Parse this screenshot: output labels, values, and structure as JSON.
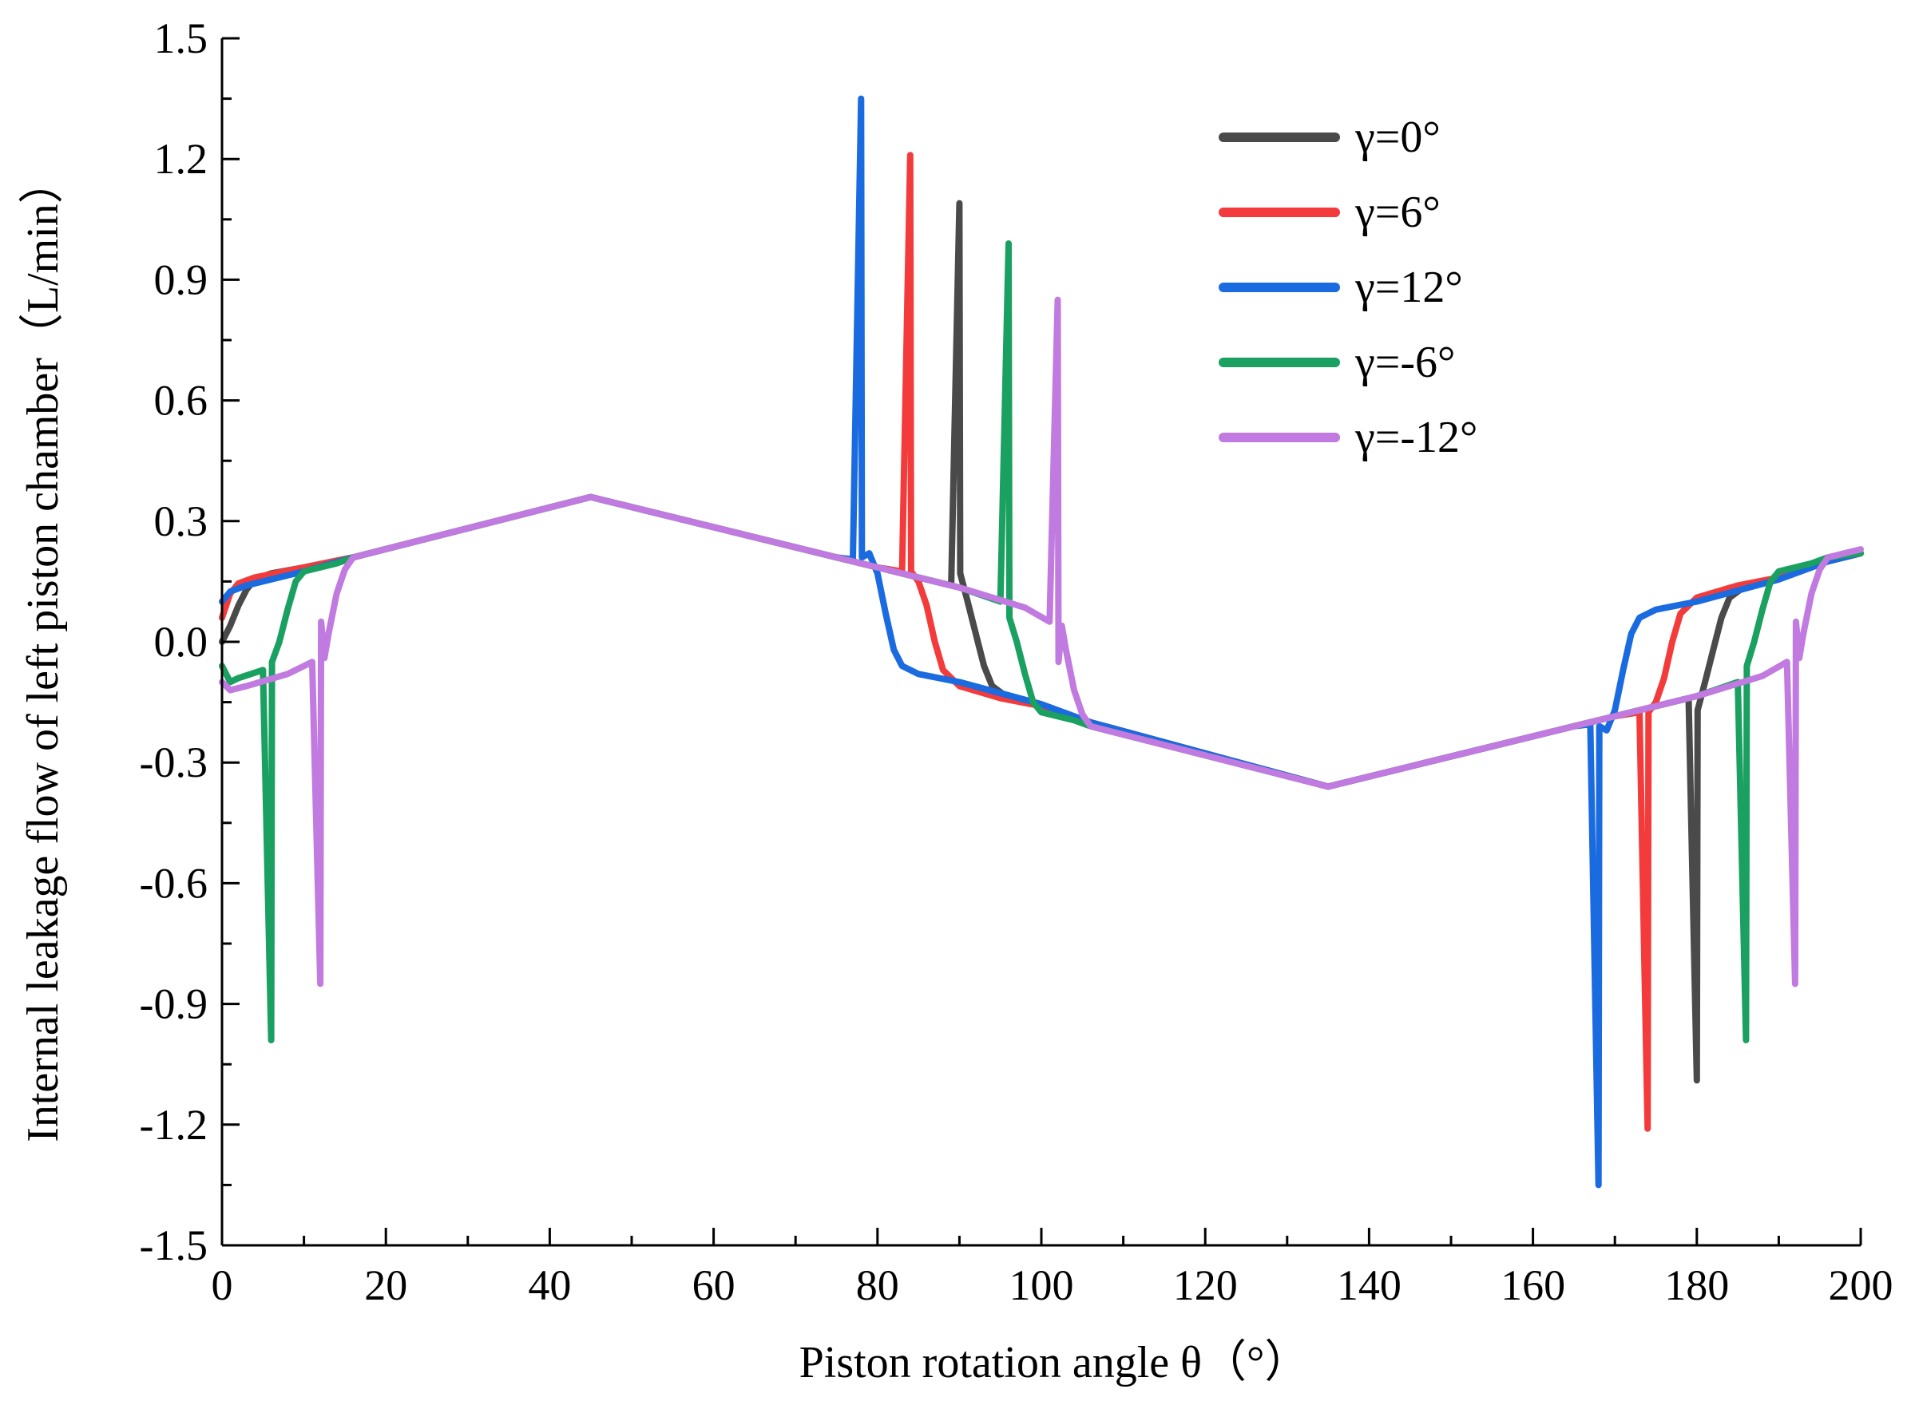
{
  "chart_data": {
    "type": "line",
    "title": "",
    "xlabel": "Piston rotation angle  θ（°）",
    "ylabel": "Internal leakage flow of left piston chamber（L/min）",
    "xlim": [
      0,
      200
    ],
    "ylim": [
      -1.5,
      1.5
    ],
    "xticks": [
      "0",
      "20",
      "40",
      "60",
      "80",
      "100",
      "120",
      "140",
      "160",
      "180",
      "200"
    ],
    "yticks": [
      "-1.5",
      "-1.2",
      "-0.9",
      "-0.6",
      "-0.3",
      "0.0",
      "0.3",
      "0.6",
      "0.9",
      "1.2",
      "1.5"
    ],
    "legend_position": "top-right",
    "series": [
      {
        "name": "γ=0°",
        "color": "#4a4a4a",
        "points": [
          [
            0,
            0
          ],
          [
            1,
            0.04
          ],
          [
            2,
            0.09
          ],
          [
            3,
            0.13
          ],
          [
            4,
            0.155
          ],
          [
            6,
            0.17
          ],
          [
            10,
            0.185
          ],
          [
            16,
            0.21
          ],
          [
            45,
            0.36
          ],
          [
            75,
            0.21
          ],
          [
            80,
            0.185
          ],
          [
            85,
            0.16
          ],
          [
            89,
            0.14
          ],
          [
            90,
            1.09
          ],
          [
            90.1,
            0.17
          ],
          [
            91,
            0.1
          ],
          [
            92,
            0.02
          ],
          [
            93,
            -0.06
          ],
          [
            94,
            -0.11
          ],
          [
            96,
            -0.14
          ],
          [
            100,
            -0.16
          ],
          [
            106,
            -0.2
          ],
          [
            135,
            -0.36
          ],
          [
            165,
            -0.21
          ],
          [
            170,
            -0.185
          ],
          [
            175,
            -0.16
          ],
          [
            179,
            -0.14
          ],
          [
            180,
            -1.09
          ],
          [
            180.1,
            -0.17
          ],
          [
            181,
            -0.1
          ],
          [
            182,
            -0.02
          ],
          [
            183,
            0.06
          ],
          [
            184,
            0.11
          ],
          [
            186,
            0.14
          ],
          [
            190,
            0.16
          ],
          [
            196,
            0.2
          ],
          [
            200,
            0.22
          ]
        ]
      },
      {
        "name": "γ=6°",
        "color": "#f33b3b",
        "points": [
          [
            0,
            0.06
          ],
          [
            1,
            0.12
          ],
          [
            2,
            0.145
          ],
          [
            4,
            0.16
          ],
          [
            10,
            0.185
          ],
          [
            16,
            0.21
          ],
          [
            45,
            0.36
          ],
          [
            75,
            0.21
          ],
          [
            80,
            0.185
          ],
          [
            83,
            0.175
          ],
          [
            84,
            1.21
          ],
          [
            84.1,
            0.175
          ],
          [
            85,
            0.15
          ],
          [
            86,
            0.09
          ],
          [
            87,
            0.0
          ],
          [
            88,
            -0.07
          ],
          [
            90,
            -0.11
          ],
          [
            95,
            -0.14
          ],
          [
            100,
            -0.16
          ],
          [
            106,
            -0.2
          ],
          [
            135,
            -0.36
          ],
          [
            165,
            -0.21
          ],
          [
            170,
            -0.185
          ],
          [
            173,
            -0.175
          ],
          [
            174,
            -1.21
          ],
          [
            174.1,
            -0.175
          ],
          [
            175,
            -0.15
          ],
          [
            176,
            -0.09
          ],
          [
            177,
            0.0
          ],
          [
            178,
            0.07
          ],
          [
            180,
            0.11
          ],
          [
            185,
            0.14
          ],
          [
            190,
            0.16
          ],
          [
            196,
            0.2
          ],
          [
            200,
            0.22
          ]
        ]
      },
      {
        "name": "γ=12°",
        "color": "#1a6ae0",
        "points": [
          [
            0,
            0.1
          ],
          [
            1,
            0.125
          ],
          [
            3,
            0.14
          ],
          [
            10,
            0.175
          ],
          [
            16,
            0.21
          ],
          [
            45,
            0.36
          ],
          [
            75,
            0.21
          ],
          [
            77,
            0.205
          ],
          [
            78,
            1.35
          ],
          [
            78.1,
            0.21
          ],
          [
            79,
            0.22
          ],
          [
            80,
            0.17
          ],
          [
            81,
            0.07
          ],
          [
            82,
            -0.02
          ],
          [
            83,
            -0.06
          ],
          [
            85,
            -0.08
          ],
          [
            90,
            -0.1
          ],
          [
            100,
            -0.155
          ],
          [
            106,
            -0.2
          ],
          [
            135,
            -0.36
          ],
          [
            165,
            -0.21
          ],
          [
            167,
            -0.205
          ],
          [
            168,
            -1.35
          ],
          [
            168.1,
            -0.21
          ],
          [
            169,
            -0.22
          ],
          [
            170,
            -0.17
          ],
          [
            171,
            -0.07
          ],
          [
            172,
            0.02
          ],
          [
            173,
            0.06
          ],
          [
            175,
            0.08
          ],
          [
            180,
            0.1
          ],
          [
            190,
            0.155
          ],
          [
            196,
            0.2
          ],
          [
            200,
            0.22
          ]
        ]
      },
      {
        "name": "γ=-6°",
        "color": "#1aa060",
        "points": [
          [
            0,
            -0.06
          ],
          [
            1,
            -0.1
          ],
          [
            2,
            -0.09
          ],
          [
            5,
            -0.07
          ],
          [
            6,
            -0.99
          ],
          [
            6.1,
            -0.05
          ],
          [
            7,
            0.0
          ],
          [
            8,
            0.08
          ],
          [
            9,
            0.15
          ],
          [
            10,
            0.175
          ],
          [
            14,
            0.195
          ],
          [
            16,
            0.21
          ],
          [
            45,
            0.36
          ],
          [
            75,
            0.21
          ],
          [
            80,
            0.185
          ],
          [
            90,
            0.135
          ],
          [
            95,
            0.1
          ],
          [
            96,
            0.99
          ],
          [
            96.1,
            0.06
          ],
          [
            97,
            0.0
          ],
          [
            98,
            -0.08
          ],
          [
            99,
            -0.15
          ],
          [
            100,
            -0.175
          ],
          [
            104,
            -0.195
          ],
          [
            106,
            -0.21
          ],
          [
            135,
            -0.36
          ],
          [
            165,
            -0.21
          ],
          [
            170,
            -0.185
          ],
          [
            180,
            -0.135
          ],
          [
            185,
            -0.1
          ],
          [
            186,
            -0.99
          ],
          [
            186.1,
            -0.06
          ],
          [
            187,
            0.0
          ],
          [
            188,
            0.08
          ],
          [
            189,
            0.15
          ],
          [
            190,
            0.175
          ],
          [
            194,
            0.195
          ],
          [
            196,
            0.21
          ],
          [
            200,
            0.22
          ]
        ]
      },
      {
        "name": "γ=-12°",
        "color": "#c07ae0",
        "points": [
          [
            0,
            -0.1
          ],
          [
            1,
            -0.12
          ],
          [
            3,
            -0.11
          ],
          [
            8,
            -0.08
          ],
          [
            11,
            -0.05
          ],
          [
            12,
            -0.85
          ],
          [
            12.1,
            0.05
          ],
          [
            12.5,
            -0.04
          ],
          [
            13,
            0.02
          ],
          [
            14,
            0.12
          ],
          [
            15,
            0.18
          ],
          [
            16,
            0.21
          ],
          [
            45,
            0.36
          ],
          [
            75,
            0.21
          ],
          [
            80,
            0.185
          ],
          [
            90,
            0.135
          ],
          [
            98,
            0.085
          ],
          [
            101,
            0.05
          ],
          [
            102,
            0.85
          ],
          [
            102.1,
            -0.05
          ],
          [
            102.5,
            0.04
          ],
          [
            103,
            -0.02
          ],
          [
            104,
            -0.12
          ],
          [
            105,
            -0.18
          ],
          [
            106,
            -0.21
          ],
          [
            135,
            -0.36
          ],
          [
            165,
            -0.21
          ],
          [
            170,
            -0.185
          ],
          [
            180,
            -0.135
          ],
          [
            188,
            -0.085
          ],
          [
            191,
            -0.05
          ],
          [
            192,
            -0.85
          ],
          [
            192.1,
            0.05
          ],
          [
            192.5,
            -0.04
          ],
          [
            193,
            0.02
          ],
          [
            194,
            0.12
          ],
          [
            195,
            0.18
          ],
          [
            196,
            0.21
          ],
          [
            200,
            0.23
          ]
        ]
      }
    ]
  }
}
